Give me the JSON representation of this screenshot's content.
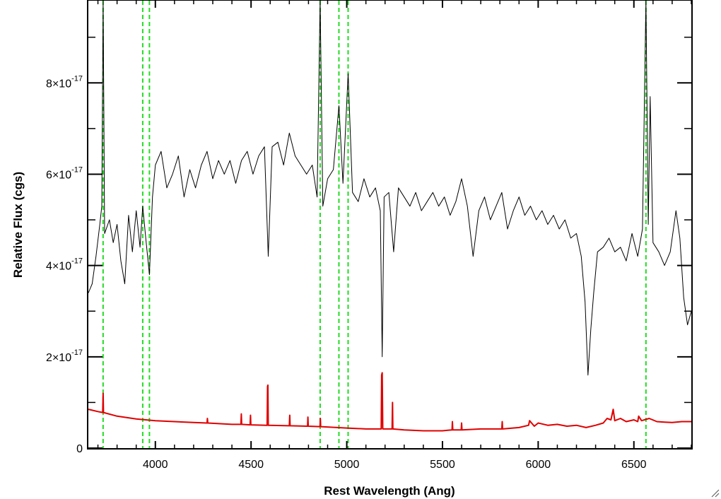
{
  "chart_data": {
    "type": "line",
    "xlabel": "Rest Wavelength (Ang)",
    "ylabel": "Relative Flux (cgs)",
    "xlim": [
      3650,
      6800
    ],
    "ylim": [
      0,
      9.8e-17
    ],
    "x_ticks": [
      {
        "value": 4000,
        "label": "4000"
      },
      {
        "value": 4500,
        "label": "4500"
      },
      {
        "value": 5000,
        "label": "5000"
      },
      {
        "value": 5500,
        "label": "5500"
      },
      {
        "value": 6000,
        "label": "6000"
      },
      {
        "value": 6500,
        "label": "6500"
      }
    ],
    "y_ticks": [
      {
        "value": 0,
        "mantissa": "0",
        "exponent": ""
      },
      {
        "value": 2e-17,
        "mantissa": "2×10",
        "exponent": "-17"
      },
      {
        "value": 4e-17,
        "mantissa": "4×10",
        "exponent": "-17"
      },
      {
        "value": 6e-17,
        "mantissa": "6×10",
        "exponent": "-17"
      },
      {
        "value": 8e-17,
        "mantissa": "8×10",
        "exponent": "-17"
      }
    ],
    "reference_lines_x": [
      3727,
      3934,
      3969,
      4861,
      4959,
      5007,
      6563
    ],
    "series": [
      {
        "color": "#000000",
        "points": [
          [
            3650,
            3.4e-17
          ],
          [
            3670,
            3.6e-17
          ],
          [
            3690,
            4.2e-17
          ],
          [
            3710,
            4.9e-17
          ],
          [
            3720,
            5.3e-17
          ],
          [
            3727,
            9.8e-17
          ],
          [
            3735,
            4.7e-17
          ],
          [
            3760,
            5e-17
          ],
          [
            3780,
            4.5e-17
          ],
          [
            3800,
            4.9e-17
          ],
          [
            3820,
            4.1e-17
          ],
          [
            3840,
            3.6e-17
          ],
          [
            3860,
            5.1e-17
          ],
          [
            3880,
            4.3e-17
          ],
          [
            3900,
            5.2e-17
          ],
          [
            3920,
            4.4e-17
          ],
          [
            3934,
            5.3e-17
          ],
          [
            3950,
            4.6e-17
          ],
          [
            3969,
            3.8e-17
          ],
          [
            3985,
            5.5e-17
          ],
          [
            4000,
            6.2e-17
          ],
          [
            4030,
            6.5e-17
          ],
          [
            4060,
            5.7e-17
          ],
          [
            4090,
            6e-17
          ],
          [
            4120,
            6.4e-17
          ],
          [
            4150,
            5.5e-17
          ],
          [
            4180,
            6.1e-17
          ],
          [
            4210,
            5.7e-17
          ],
          [
            4240,
            6.2e-17
          ],
          [
            4270,
            6.5e-17
          ],
          [
            4300,
            5.9e-17
          ],
          [
            4330,
            6.3e-17
          ],
          [
            4360,
            6e-17
          ],
          [
            4390,
            6.3e-17
          ],
          [
            4420,
            5.8e-17
          ],
          [
            4450,
            6.3e-17
          ],
          [
            4480,
            6.5e-17
          ],
          [
            4510,
            6e-17
          ],
          [
            4540,
            6.4e-17
          ],
          [
            4570,
            6.6e-17
          ],
          [
            4590,
            4.2e-17
          ],
          [
            4610,
            6.6e-17
          ],
          [
            4640,
            6.7e-17
          ],
          [
            4670,
            6.2e-17
          ],
          [
            4700,
            6.9e-17
          ],
          [
            4730,
            6.4e-17
          ],
          [
            4760,
            6.2e-17
          ],
          [
            4790,
            6e-17
          ],
          [
            4820,
            6.2e-17
          ],
          [
            4845,
            5.5e-17
          ],
          [
            4861,
            9.8e-17
          ],
          [
            4875,
            5.3e-17
          ],
          [
            4900,
            5.9e-17
          ],
          [
            4930,
            6.1e-17
          ],
          [
            4959,
            7.5e-17
          ],
          [
            4980,
            5.8e-17
          ],
          [
            5007,
            8.2e-17
          ],
          [
            5030,
            5.6e-17
          ],
          [
            5060,
            5.4e-17
          ],
          [
            5090,
            5.9e-17
          ],
          [
            5120,
            5.5e-17
          ],
          [
            5150,
            5.7e-17
          ],
          [
            5175,
            5.2e-17
          ],
          [
            5185,
            2e-17
          ],
          [
            5195,
            5.5e-17
          ],
          [
            5220,
            5.6e-17
          ],
          [
            5245,
            4.3e-17
          ],
          [
            5270,
            5.7e-17
          ],
          [
            5300,
            5.5e-17
          ],
          [
            5330,
            5.3e-17
          ],
          [
            5360,
            5.6e-17
          ],
          [
            5390,
            5.2e-17
          ],
          [
            5420,
            5.4e-17
          ],
          [
            5450,
            5.6e-17
          ],
          [
            5480,
            5.3e-17
          ],
          [
            5510,
            5.5e-17
          ],
          [
            5540,
            5.1e-17
          ],
          [
            5570,
            5.4e-17
          ],
          [
            5600,
            5.9e-17
          ],
          [
            5630,
            5.3e-17
          ],
          [
            5660,
            4.2e-17
          ],
          [
            5690,
            5.2e-17
          ],
          [
            5720,
            5.5e-17
          ],
          [
            5750,
            5e-17
          ],
          [
            5780,
            5.3e-17
          ],
          [
            5810,
            5.6e-17
          ],
          [
            5840,
            4.8e-17
          ],
          [
            5870,
            5.2e-17
          ],
          [
            5900,
            5.5e-17
          ],
          [
            5930,
            5.1e-17
          ],
          [
            5960,
            5.3e-17
          ],
          [
            5990,
            5e-17
          ],
          [
            6020,
            5.2e-17
          ],
          [
            6050,
            4.9e-17
          ],
          [
            6080,
            5.1e-17
          ],
          [
            6110,
            4.8e-17
          ],
          [
            6140,
            5e-17
          ],
          [
            6170,
            4.6e-17
          ],
          [
            6200,
            4.7e-17
          ],
          [
            6225,
            4.2e-17
          ],
          [
            6245,
            3.2e-17
          ],
          [
            6260,
            1.6e-17
          ],
          [
            6275,
            2.6e-17
          ],
          [
            6290,
            3.4e-17
          ],
          [
            6310,
            4.3e-17
          ],
          [
            6340,
            4.4e-17
          ],
          [
            6370,
            4.6e-17
          ],
          [
            6400,
            4.3e-17
          ],
          [
            6430,
            4.4e-17
          ],
          [
            6460,
            4.1e-17
          ],
          [
            6490,
            4.7e-17
          ],
          [
            6520,
            4.2e-17
          ],
          [
            6545,
            4.8e-17
          ],
          [
            6563,
            9.8e-17
          ],
          [
            6575,
            4.9e-17
          ],
          [
            6585,
            7.7e-17
          ],
          [
            6600,
            4.5e-17
          ],
          [
            6630,
            4.3e-17
          ],
          [
            6660,
            4e-17
          ],
          [
            6690,
            4.3e-17
          ],
          [
            6720,
            5.2e-17
          ],
          [
            6740,
            4.6e-17
          ],
          [
            6760,
            3.3e-17
          ],
          [
            6780,
            2.7e-17
          ],
          [
            6800,
            3e-17
          ]
        ]
      },
      {
        "color": "#e00000",
        "points": [
          [
            3650,
            8.5e-18
          ],
          [
            3700,
            8e-18
          ],
          [
            3725,
            7.8e-18
          ],
          [
            3727,
            1.2e-17
          ],
          [
            3729,
            7.8e-18
          ],
          [
            3800,
            7e-18
          ],
          [
            3900,
            6.4e-18
          ],
          [
            4000,
            6e-18
          ],
          [
            4100,
            5.8e-18
          ],
          [
            4200,
            5.6e-18
          ],
          [
            4270,
            5.5e-18
          ],
          [
            4272,
            6.5e-18
          ],
          [
            4274,
            5.5e-18
          ],
          [
            4400,
            5.2e-18
          ],
          [
            4447,
            5.2e-18
          ],
          [
            4449,
            7.5e-18
          ],
          [
            4451,
            5.2e-18
          ],
          [
            4495,
            5.1e-18
          ],
          [
            4497,
            7.2e-18
          ],
          [
            4499,
            5.1e-18
          ],
          [
            4584,
            5e-18
          ],
          [
            4586,
            1.35e-17
          ],
          [
            4588,
            1.38e-17
          ],
          [
            4590,
            5e-18
          ],
          [
            4700,
            4.9e-18
          ],
          [
            4702,
            7.2e-18
          ],
          [
            4704,
            4.9e-18
          ],
          [
            4795,
            4.8e-18
          ],
          [
            4797,
            6.8e-18
          ],
          [
            4799,
            4.8e-18
          ],
          [
            4860,
            4.7e-18
          ],
          [
            4862,
            6.5e-18
          ],
          [
            4864,
            4.7e-18
          ],
          [
            5000,
            4.4e-18
          ],
          [
            5100,
            4.2e-18
          ],
          [
            5180,
            4.2e-18
          ],
          [
            5182,
            1.6e-17
          ],
          [
            5185,
            1.65e-17
          ],
          [
            5188,
            4.2e-18
          ],
          [
            5237,
            4.2e-18
          ],
          [
            5239,
            1e-17
          ],
          [
            5241,
            4.2e-18
          ],
          [
            5300,
            4e-18
          ],
          [
            5400,
            3.8e-18
          ],
          [
            5500,
            3.8e-18
          ],
          [
            5550,
            4e-18
          ],
          [
            5552,
            5.8e-18
          ],
          [
            5554,
            4e-18
          ],
          [
            5598,
            4e-18
          ],
          [
            5600,
            5.5e-18
          ],
          [
            5602,
            4e-18
          ],
          [
            5700,
            4.2e-18
          ],
          [
            5810,
            4.2e-18
          ],
          [
            5812,
            5.8e-18
          ],
          [
            5814,
            4.2e-18
          ],
          [
            5900,
            4.5e-18
          ],
          [
            5950,
            5e-18
          ],
          [
            5955,
            6e-18
          ],
          [
            5980,
            4.8e-18
          ],
          [
            6000,
            5.5e-18
          ],
          [
            6050,
            5e-18
          ],
          [
            6100,
            5.2e-18
          ],
          [
            6150,
            4.8e-18
          ],
          [
            6200,
            5e-18
          ],
          [
            6250,
            4.5e-18
          ],
          [
            6300,
            5e-18
          ],
          [
            6340,
            5.5e-18
          ],
          [
            6360,
            6.5e-18
          ],
          [
            6380,
            6.2e-18
          ],
          [
            6392,
            8.5e-18
          ],
          [
            6400,
            6e-18
          ],
          [
            6430,
            6.5e-18
          ],
          [
            6460,
            5.8e-18
          ],
          [
            6500,
            6.2e-18
          ],
          [
            6520,
            5.8e-18
          ],
          [
            6525,
            7e-18
          ],
          [
            6540,
            6e-18
          ],
          [
            6580,
            6.5e-18
          ],
          [
            6620,
            5.8e-18
          ],
          [
            6660,
            5.7e-18
          ],
          [
            6700,
            5.6e-18
          ],
          [
            6750,
            5.8e-18
          ],
          [
            6800,
            5.8e-18
          ]
        ]
      }
    ],
    "grid": false,
    "legend": "none"
  }
}
